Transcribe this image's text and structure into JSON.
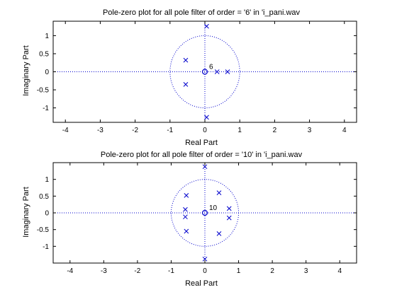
{
  "colors": {
    "marker": "#0000cc",
    "axis": "#000000",
    "background": "#ffffff"
  },
  "chart_data": [
    {
      "type": "scatter",
      "title": "Pole-zero plot for all pole filter of order = '6' in 'i_pani.wav",
      "xlabel": "Real Part",
      "ylabel": "Imaginary Part",
      "xlim": [
        -4.35,
        4.35
      ],
      "ylim": [
        -1.4,
        1.4
      ],
      "xticks": [
        -4,
        -3,
        -2,
        -1,
        0,
        1,
        2,
        3,
        4
      ],
      "yticks": [
        -1,
        -0.5,
        0,
        0.5,
        1
      ],
      "xtick_labels": [
        "-4",
        "-3",
        "-2",
        "-1",
        "0",
        "1",
        "2",
        "3",
        "4"
      ],
      "ytick_labels": [
        "-1",
        "-0.5",
        "0",
        "0.5",
        "1"
      ],
      "unit_circle": true,
      "zero_multiplicity_label": "6",
      "zeros": [
        [
          0,
          0
        ]
      ],
      "poles": [
        [
          0.05,
          1.26
        ],
        [
          0.05,
          -1.26
        ],
        [
          -0.55,
          0.32
        ],
        [
          -0.55,
          -0.35
        ],
        [
          0.35,
          0.0
        ],
        [
          0.65,
          0.0
        ]
      ]
    },
    {
      "type": "scatter",
      "title": "Pole-zero plot for all pole filter of order = '10' in 'i_pani.wav",
      "xlabel": "Real Part",
      "ylabel": "Imaginary Part",
      "xlim": [
        -4.5,
        4.5
      ],
      "ylim": [
        -1.5,
        1.5
      ],
      "xticks": [
        -4,
        -3,
        -2,
        -1,
        0,
        1,
        2,
        3,
        4
      ],
      "yticks": [
        -1,
        -0.5,
        0,
        0.5,
        1
      ],
      "xtick_labels": [
        "-4",
        "-3",
        "-2",
        "-1",
        "0",
        "1",
        "2",
        "3",
        "4"
      ],
      "ytick_labels": [
        "-1",
        "-0.5",
        "0",
        "0.5",
        "1"
      ],
      "unit_circle": true,
      "zero_multiplicity_label": "10",
      "zeros": [
        [
          0,
          0
        ]
      ],
      "poles": [
        [
          0.0,
          1.38
        ],
        [
          0.0,
          -1.38
        ],
        [
          0.42,
          0.6
        ],
        [
          0.42,
          -0.62
        ],
        [
          0.72,
          0.13
        ],
        [
          0.72,
          -0.15
        ],
        [
          -0.55,
          0.52
        ],
        [
          -0.55,
          -0.55
        ],
        [
          -0.58,
          0.1
        ],
        [
          -0.58,
          -0.12
        ]
      ]
    }
  ]
}
